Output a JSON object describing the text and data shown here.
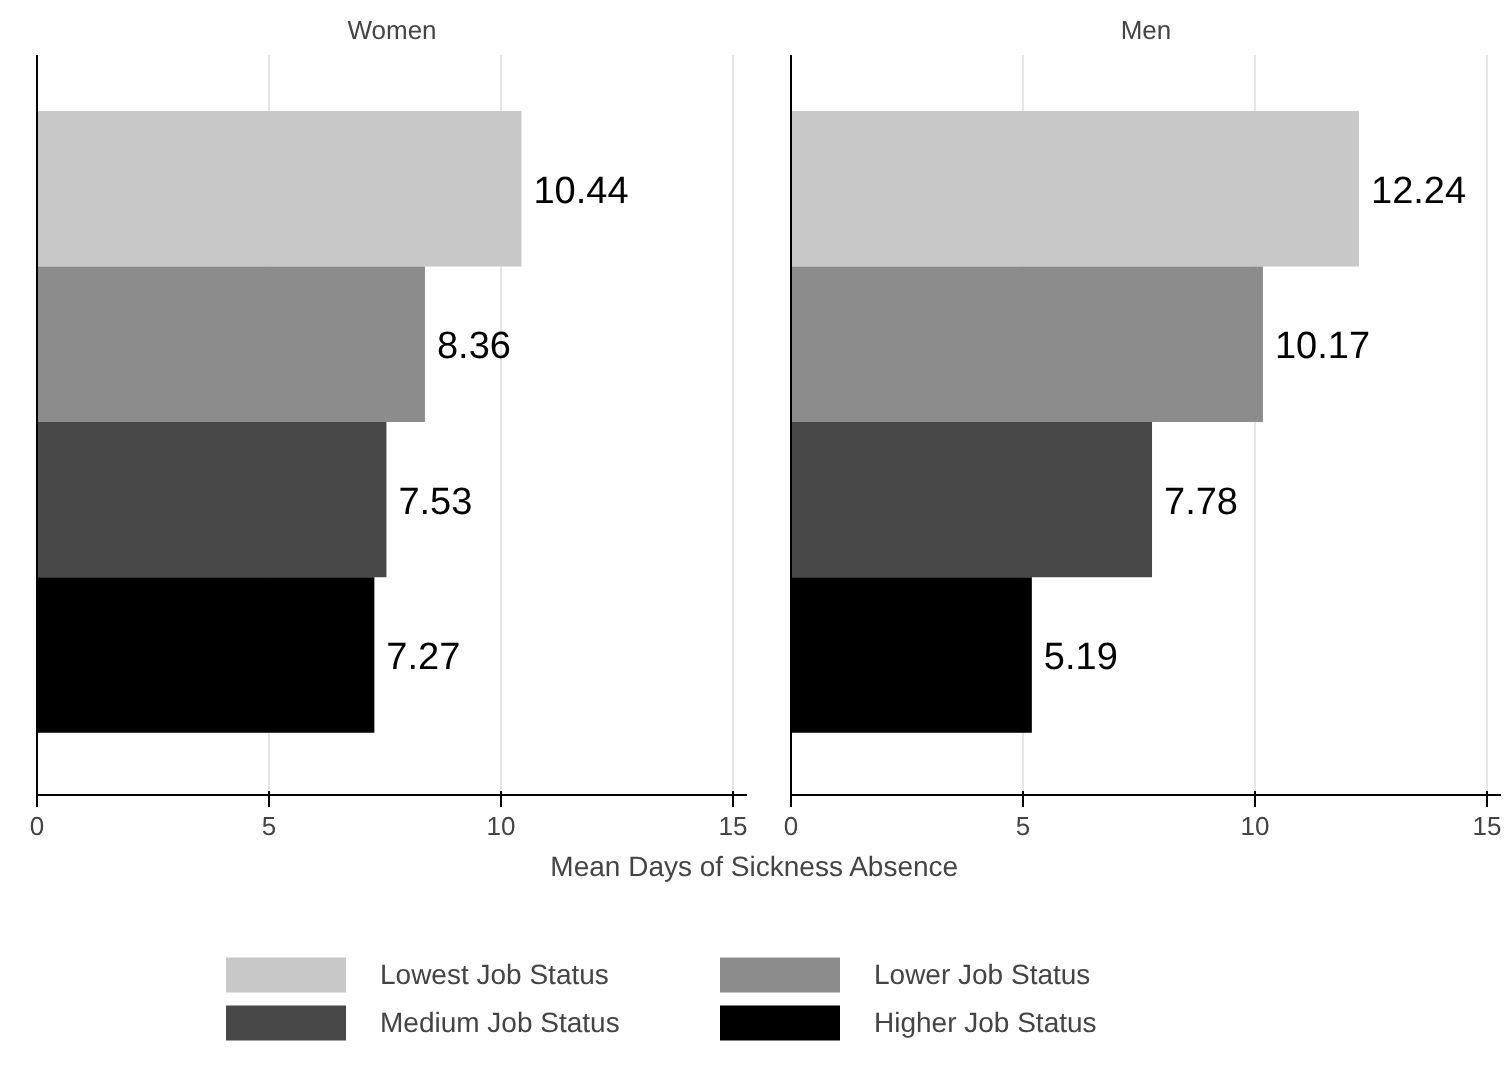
{
  "chart_data": [
    {
      "type": "bar",
      "orientation": "horizontal",
      "title": "Women",
      "xlabel": "Mean Days of Sickness Absence",
      "categories": [
        null,
        null,
        null,
        null
      ],
      "xlim": [
        0,
        15.3
      ],
      "xticks": [
        0,
        5,
        10,
        15
      ],
      "grid": "x",
      "data_labels": true,
      "legend": "bottom",
      "series": [
        {
          "name": "Lowest Job Status",
          "color": "#c8c8c8",
          "values": [
            10.44,
            null,
            null,
            null
          ]
        },
        {
          "name": "Lower Job Status",
          "color": "#8c8c8c",
          "values": [
            null,
            8.36,
            null,
            null
          ]
        },
        {
          "name": "Medium Job Status",
          "color": "#484848",
          "values": [
            null,
            null,
            7.53,
            null
          ]
        },
        {
          "name": "Higher Job Status",
          "color": "#000000",
          "values": [
            null,
            null,
            null,
            7.27
          ]
        }
      ]
    },
    {
      "type": "bar",
      "orientation": "horizontal",
      "title": "Men",
      "categories": [
        null,
        null,
        null,
        null
      ],
      "xlim": [
        0,
        15.3
      ],
      "xticks": [
        0,
        5,
        10,
        15
      ],
      "grid": "x",
      "data_labels": true,
      "series": [
        {
          "color": "#c8c8c8",
          "values": [
            12.24,
            null,
            null,
            null
          ]
        },
        {
          "color": "#8c8c8c",
          "values": [
            null,
            10.17,
            null,
            null
          ]
        },
        {
          "color": "#484848",
          "values": [
            null,
            null,
            7.78,
            null
          ]
        },
        {
          "color": "#000000",
          "values": [
            null,
            null,
            null,
            5.19
          ]
        }
      ]
    }
  ]
}
